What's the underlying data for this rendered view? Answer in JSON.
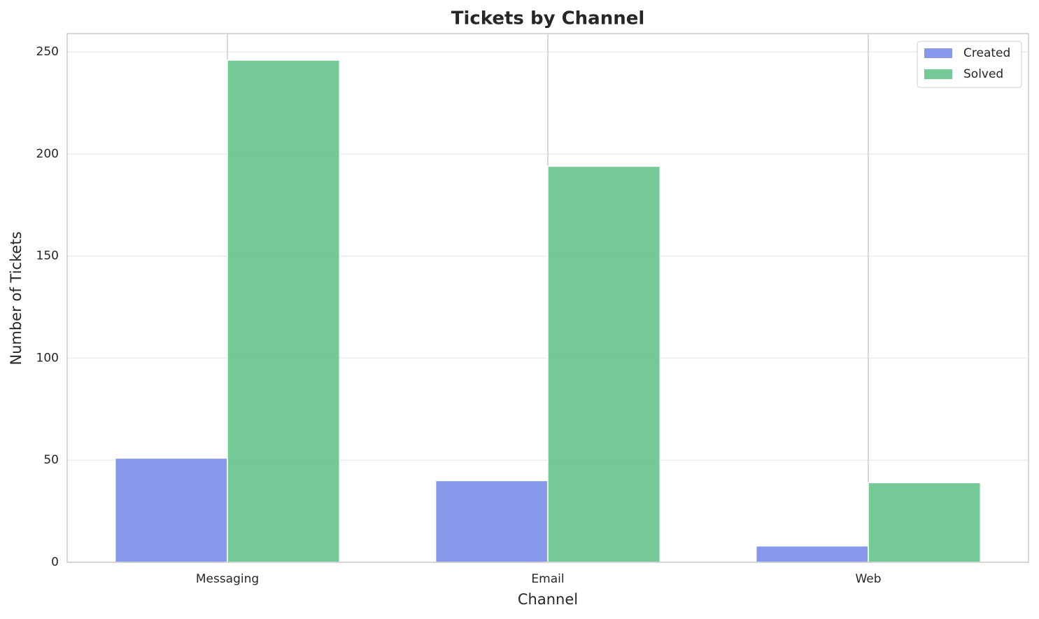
{
  "chart_data": {
    "type": "bar",
    "title": "Tickets by Channel",
    "x_label": "Channel",
    "y_label": "Number of Tickets",
    "categories": [
      "Messaging",
      "Email",
      "Web"
    ],
    "series": [
      {
        "name": "Created",
        "color": "#7286e8",
        "values": [
          51,
          40,
          8
        ]
      },
      {
        "name": "Solved",
        "color": "#5cbf85",
        "values": [
          246,
          194,
          39
        ]
      }
    ],
    "ylim": [
      0,
      259
    ],
    "yticks": [
      0,
      50,
      100,
      150,
      200,
      250
    ],
    "grid": true,
    "legend": "upper right"
  }
}
